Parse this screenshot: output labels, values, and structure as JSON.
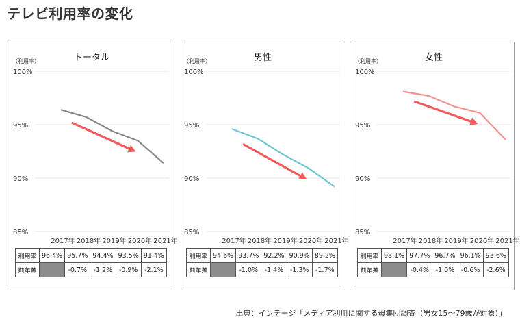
{
  "title": "テレビ利用率の変化",
  "source": "出典：インテージ「メディア利用に関する母集団調査（男女15～79歳が対象）」",
  "table_labels": {
    "row1": "利用率",
    "row2": "前年差"
  },
  "colors": {
    "arrow": "#f05a5a",
    "grid": "#e4e4e4"
  },
  "chart_data": [
    {
      "type": "line",
      "title": "トータル",
      "ylabel": "（利用率）",
      "y_ticks": [
        "100%",
        "95%",
        "90%",
        "85%"
      ],
      "ylim": [
        85,
        100
      ],
      "categories": [
        "2017年",
        "2018年",
        "2019年",
        "2020年",
        "2021年"
      ],
      "series": [
        {
          "values": [
            96.4,
            95.7,
            94.4,
            93.5,
            91.4
          ],
          "color": "#8a8586"
        }
      ],
      "rate_row": [
        "96.4%",
        "95.7%",
        "94.4%",
        "93.5%",
        "91.4%"
      ],
      "diff_row": [
        "",
        "-0.7%",
        "-1.2%",
        "-0.9%",
        "-2.1%"
      ]
    },
    {
      "type": "line",
      "title": "男性",
      "ylabel": "（利用率）",
      "y_ticks": [
        "100%",
        "95%",
        "90%",
        "85%"
      ],
      "ylim": [
        85,
        100
      ],
      "categories": [
        "2017年",
        "2018年",
        "2019年",
        "2020年",
        "2021年"
      ],
      "series": [
        {
          "values": [
            94.6,
            93.7,
            92.2,
            90.9,
            89.2
          ],
          "color": "#6cc4d0"
        }
      ],
      "rate_row": [
        "94.6%",
        "93.7%",
        "92.2%",
        "90.9%",
        "89.2%"
      ],
      "diff_row": [
        "",
        "-1.0%",
        "-1.4%",
        "-1.3%",
        "-1.7%"
      ]
    },
    {
      "type": "line",
      "title": "女性",
      "ylabel": "（利用率）",
      "y_ticks": [
        "100%",
        "95%",
        "90%",
        "85%"
      ],
      "ylim": [
        85,
        100
      ],
      "categories": [
        "2017年",
        "2018年",
        "2019年",
        "2020年",
        "2021年"
      ],
      "series": [
        {
          "values": [
            98.1,
            97.7,
            96.7,
            96.1,
            93.6
          ],
          "color": "#f39090"
        }
      ],
      "rate_row": [
        "98.1%",
        "97.7%",
        "96.7%",
        "96.1%",
        "93.6%"
      ],
      "diff_row": [
        "",
        "-0.4%",
        "-1.0%",
        "-0.6%",
        "-2.6%"
      ]
    }
  ]
}
